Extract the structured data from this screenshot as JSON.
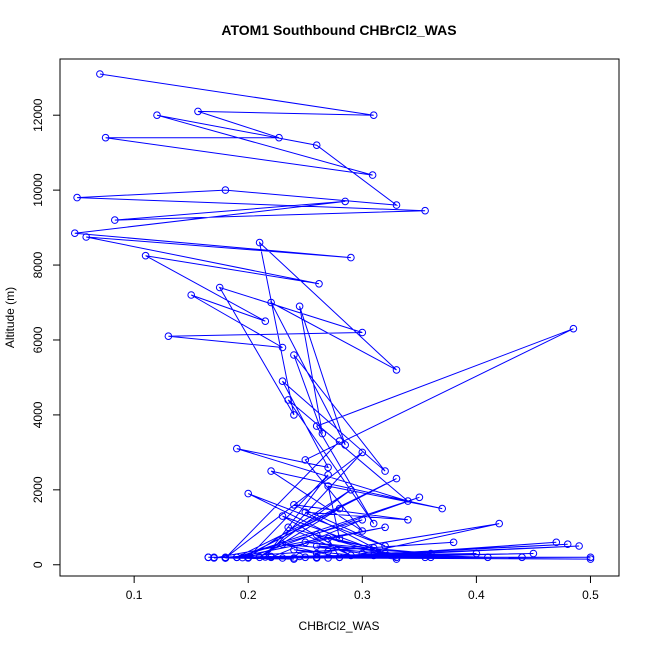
{
  "chart_data": {
    "type": "line",
    "title": "ATOM1 Southbound CHBrCl2_WAS",
    "xlabel": "CHBrCl2_WAS",
    "ylabel": "Altitude (m)",
    "xlim": [
      0.035,
      0.525
    ],
    "ylim": [
      -300,
      13500
    ],
    "x_ticks": [
      0.1,
      0.2,
      0.3,
      0.4,
      0.5
    ],
    "x_tick_labels": [
      "0.1",
      "0.2",
      "0.3",
      "0.4",
      "0.5"
    ],
    "y_ticks": [
      0,
      2000,
      4000,
      6000,
      8000,
      10000,
      12000
    ],
    "y_tick_labels": [
      "0",
      "2000",
      "4000",
      "6000",
      "8000",
      "10000",
      "12000"
    ],
    "grid": false,
    "color": "#0000ff",
    "series": [
      {
        "marker": "open-circle",
        "x": [
          0.07,
          0.31,
          0.156,
          0.227,
          0.075,
          0.309,
          0.12,
          0.26,
          0.33,
          0.18,
          0.05,
          0.355,
          0.083,
          0.285,
          0.048,
          0.29,
          0.058,
          0.262,
          0.11,
          0.215,
          0.15,
          0.23,
          0.13,
          0.3,
          0.175,
          0.24,
          0.21,
          0.33,
          0.22,
          0.285,
          0.245,
          0.265,
          0.24,
          0.32,
          0.23,
          0.27,
          0.19,
          0.34,
          0.235,
          0.31,
          0.26,
          0.485,
          0.25,
          0.3,
          0.22,
          0.37,
          0.27,
          0.28,
          0.2,
          0.32,
          0.24,
          0.34,
          0.25,
          0.32,
          0.23,
          0.29,
          0.235,
          0.33,
          0.26,
          0.31,
          0.27,
          0.28,
          0.23,
          0.355,
          0.25,
          0.36,
          0.26,
          0.33,
          0.24,
          0.26,
          0.27,
          0.42,
          0.3,
          0.41,
          0.31,
          0.47,
          0.28,
          0.49,
          0.26,
          0.5,
          0.27,
          0.45,
          0.25,
          0.48,
          0.26,
          0.44,
          0.24,
          0.5,
          0.22,
          0.3,
          0.19,
          0.32,
          0.17,
          0.38,
          0.18,
          0.4,
          0.2,
          0.36,
          0.165,
          0.24,
          0.18,
          0.22,
          0.17,
          0.26,
          0.18,
          0.245,
          0.165,
          0.23,
          0.2,
          0.35,
          0.19,
          0.33,
          0.195,
          0.28,
          0.21,
          0.29,
          0.2,
          0.27,
          0.215,
          0.3,
          0.18,
          0.28
        ],
        "y": [
          13100,
          12000,
          12100,
          11400,
          11400,
          10400,
          12000,
          11200,
          9600,
          10000,
          9800,
          9450,
          9200,
          9700,
          8850,
          8200,
          8750,
          7500,
          8250,
          6500,
          7200,
          5800,
          6100,
          6200,
          7400,
          4000,
          8600,
          5200,
          7000,
          3200,
          6900,
          3500,
          5600,
          2500,
          4900,
          2600,
          3100,
          1700,
          4400,
          1100,
          3700,
          6300,
          2800,
          900,
          2500,
          1500,
          2100,
          700,
          1900,
          500,
          1600,
          1200,
          1400,
          300,
          1300,
          250,
          1000,
          200,
          800,
          450,
          700,
          200,
          550,
          200,
          600,
          300,
          500,
          150,
          400,
          300,
          350,
          1100,
          300,
          200,
          250,
          600,
          200,
          500,
          200,
          150,
          180,
          300,
          200,
          550,
          200,
          200,
          180,
          200,
          200,
          1200,
          200,
          1000,
          180,
          600,
          200,
          300,
          180,
          200,
          200,
          150,
          180,
          220,
          200,
          180,
          180,
          220,
          200,
          180,
          190,
          1800,
          200,
          2300,
          190,
          1500,
          200,
          2000,
          200,
          2400,
          210,
          3000,
          180,
          3300
        ]
      }
    ]
  }
}
